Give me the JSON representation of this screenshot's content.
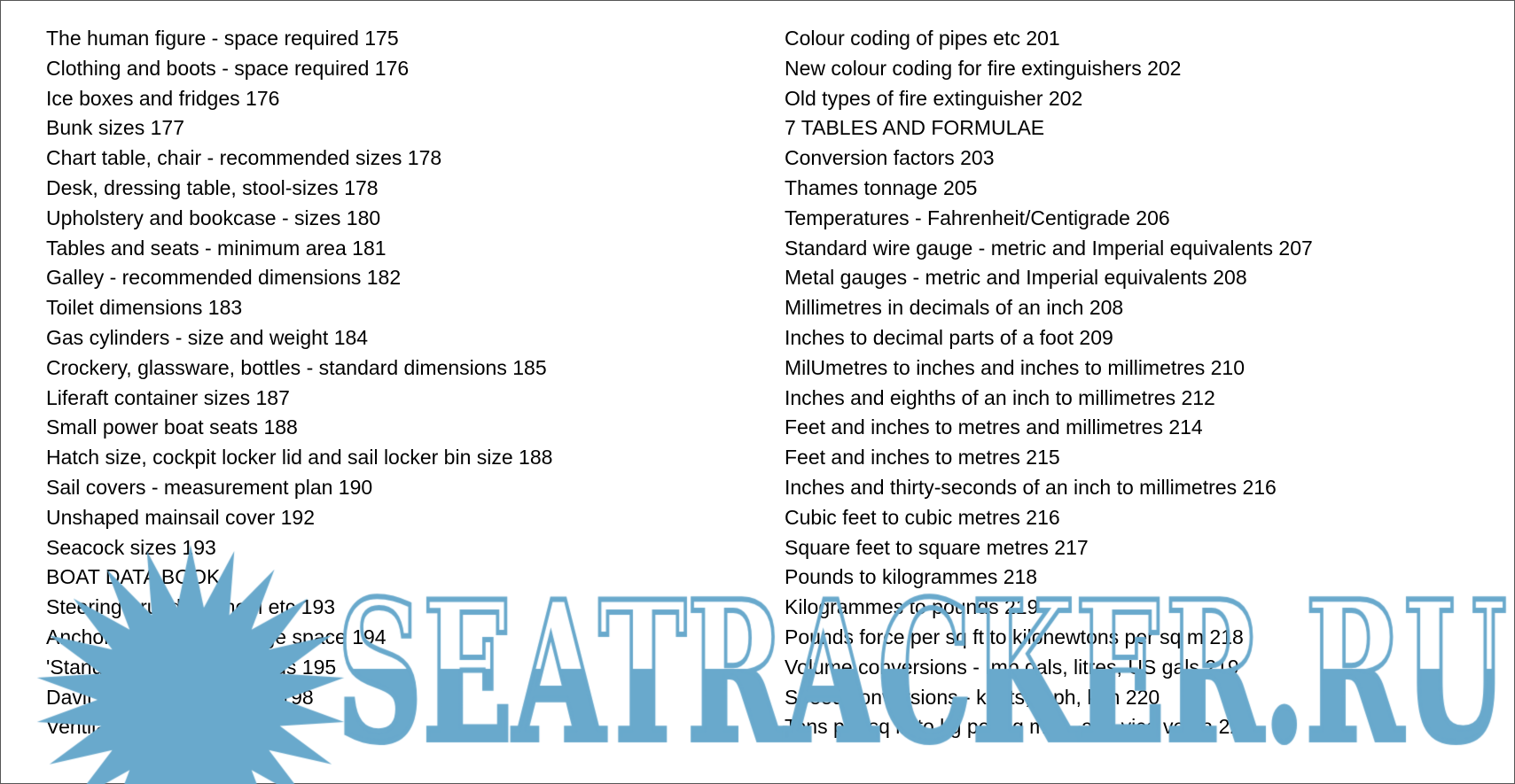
{
  "left_column": [
    "The human figure - space required 175",
    "Clothing and boots - space required 176",
    "Ice boxes and fridges 176",
    "Bunk sizes 177",
    "Chart table, chair - recommended sizes 178",
    "Desk, dressing table, stool-sizes 178",
    "Upholstery and bookcase - sizes 180",
    "Tables and seats - minimum area 181",
    "Galley - recommended dimensions 182",
    "Toilet dimensions 183",
    "Gas cylinders - size and weight 184",
    "Crockery, glassware, bottles - standard dimensions 185",
    "Liferaft container sizes 187",
    "Small power boat seats 188",
    "Hatch size, cockpit locker lid and sail locker bin size 188",
    "Sail covers - measurement plan 190",
    "Unshaped mainsail cover 192",
    "Seacock sizes 193",
    "BOAT DATA BOOK",
    "Steering - rudder, wheel etc 193",
    "Anchor cable and stowage space 194",
    "'Standard' bollards/fairleads 195",
    "Davit strengths and sizes 198",
    "Ventilation 200"
  ],
  "right_column": [
    "Colour coding of pipes etc 201",
    "New colour coding for fire extinguishers 202",
    "Old types of fire extinguisher 202",
    "7 TABLES AND FORMULAE",
    "Conversion factors 203",
    "Thames tonnage 205",
    "Temperatures - Fahrenheit/Centigrade 206",
    "Standard wire gauge - metric and Imperial equivalents 207",
    "Metal gauges - metric and Imperial equivalents 208",
    "Millimetres in decimals of an inch 208",
    "Inches to decimal parts of a foot 209",
    "MilUmetres to inches and inches to millimetres 210",
    "Inches and eighths of an inch to millimetres 212",
    "Feet and inches to metres and millimetres 214",
    "Feet and inches to metres 215",
    "Inches and thirty-seconds of an inch to millimetres 216",
    "Cubic feet to cubic metres 216",
    "Square feet to square metres 217",
    "Pounds to kilogrammes 218",
    "Kilogrammes to pounds 219",
    "Pounds force per sq ft to kilonewtons per sq m 218",
    "Volume conversions - Imp gals, litres, US gals 219",
    "Speed conversions - knots, mph, kph 220",
    "Tons per sq in to kg per sq mm - and vice versa 221"
  ],
  "watermark": {
    "text": "SEATRACKER.RU",
    "color": "#69a9cc"
  }
}
